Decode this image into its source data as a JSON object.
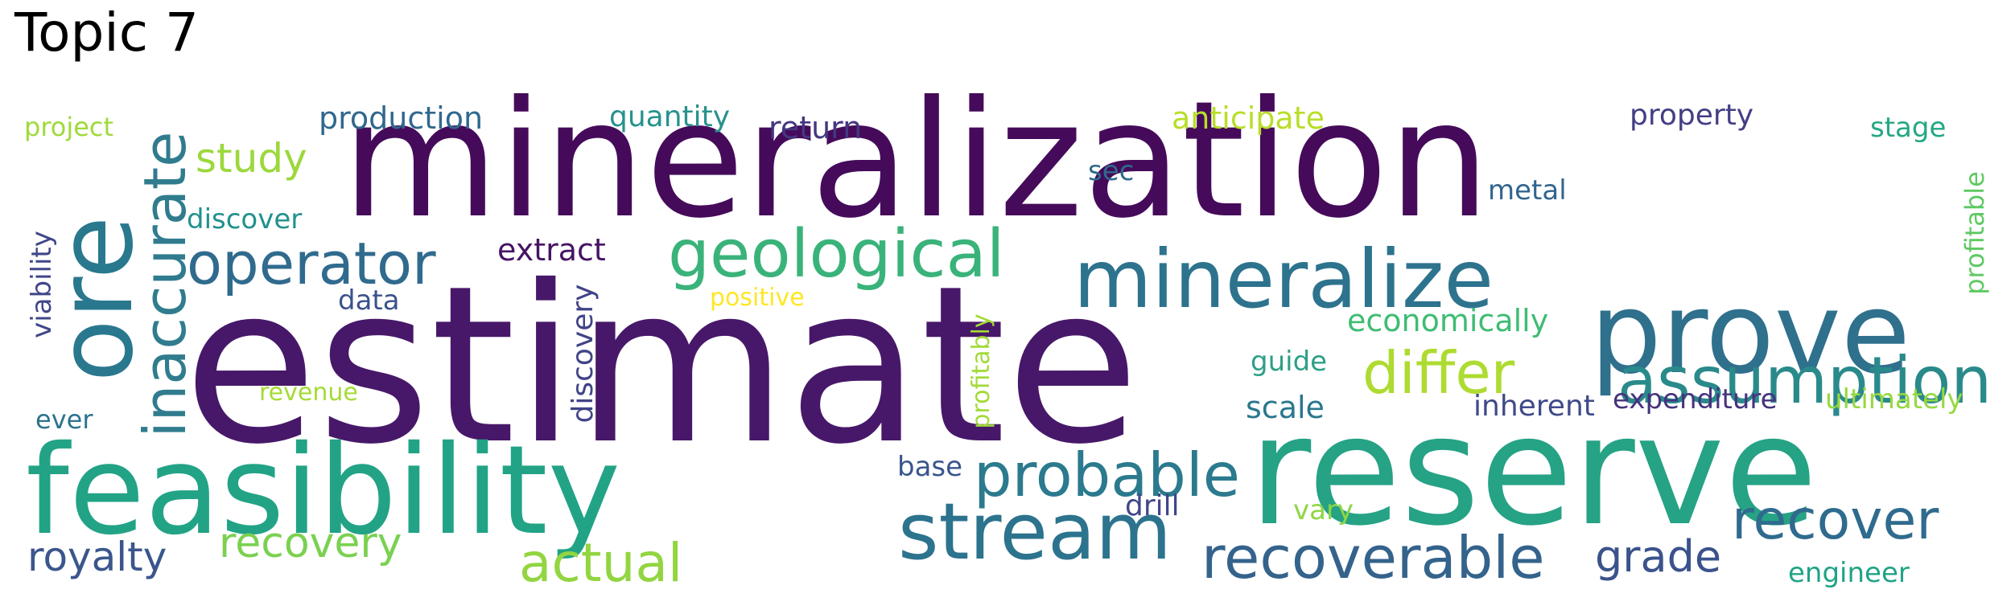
{
  "title": "Topic 7",
  "words": [
    {
      "text": "estimate",
      "color": "#471869"
    },
    {
      "text": "mineralization",
      "color": "#450b5a"
    },
    {
      "text": "reserve",
      "color": "#26a285"
    },
    {
      "text": "feasibility",
      "color": "#22a386"
    },
    {
      "text": "ore",
      "color": "#29788e"
    },
    {
      "text": "prove",
      "color": "#2f708d"
    },
    {
      "text": "mineralize",
      "color": "#2d738e"
    },
    {
      "text": "stream",
      "color": "#2c738e"
    },
    {
      "text": "inaccurate",
      "color": "#307c8e"
    },
    {
      "text": "assumption",
      "color": "#2a8a8b"
    },
    {
      "text": "geological",
      "color": "#3ab37a"
    },
    {
      "text": "recoverable",
      "color": "#34638c"
    },
    {
      "text": "probable",
      "color": "#2b7a8e"
    },
    {
      "text": "operator",
      "color": "#306b8e"
    },
    {
      "text": "differ",
      "color": "#aedb31"
    },
    {
      "text": "recover",
      "color": "#2f6b8e"
    },
    {
      "text": "actual",
      "color": "#92d541"
    },
    {
      "text": "royalty",
      "color": "#3a568c"
    },
    {
      "text": "recovery",
      "color": "#7ad151"
    },
    {
      "text": "grade",
      "color": "#3b528b"
    },
    {
      "text": "study",
      "color": "#9cd83c"
    },
    {
      "text": "economically",
      "color": "#3fbc73"
    },
    {
      "text": "discovery",
      "color": "#414487"
    },
    {
      "text": "production",
      "color": "#31688e"
    },
    {
      "text": "extract",
      "color": "#471364"
    },
    {
      "text": "return",
      "color": "#453781"
    },
    {
      "text": "quantity",
      "color": "#27928c"
    },
    {
      "text": "anticipate",
      "color": "#b8de29"
    },
    {
      "text": "property",
      "color": "#433e85"
    },
    {
      "text": "viability",
      "color": "#404688"
    },
    {
      "text": "stage",
      "color": "#24a784"
    },
    {
      "text": "project",
      "color": "#9fda3a"
    },
    {
      "text": "discover",
      "color": "#21918c"
    },
    {
      "text": "data",
      "color": "#3b528b"
    },
    {
      "text": "positive",
      "color": "#fde725"
    },
    {
      "text": "revenue",
      "color": "#a5db36"
    },
    {
      "text": "ever",
      "color": "#2c738e"
    },
    {
      "text": "sec",
      "color": "#2f6a8d"
    },
    {
      "text": "metal",
      "color": "#32658e"
    },
    {
      "text": "profitable",
      "color": "#5ec962"
    },
    {
      "text": "profitably",
      "color": "#a2da37"
    },
    {
      "text": "guide",
      "color": "#2d9f88"
    },
    {
      "text": "scale",
      "color": "#2a778e"
    },
    {
      "text": "inherent",
      "color": "#3e4a89"
    },
    {
      "text": "expenditure",
      "color": "#46327e"
    },
    {
      "text": "ultimately",
      "color": "#97d83f"
    },
    {
      "text": "base",
      "color": "#39558c"
    },
    {
      "text": "drill",
      "color": "#404688"
    },
    {
      "text": "vary",
      "color": "#8ed645"
    },
    {
      "text": "engineer",
      "color": "#20a386"
    }
  ]
}
